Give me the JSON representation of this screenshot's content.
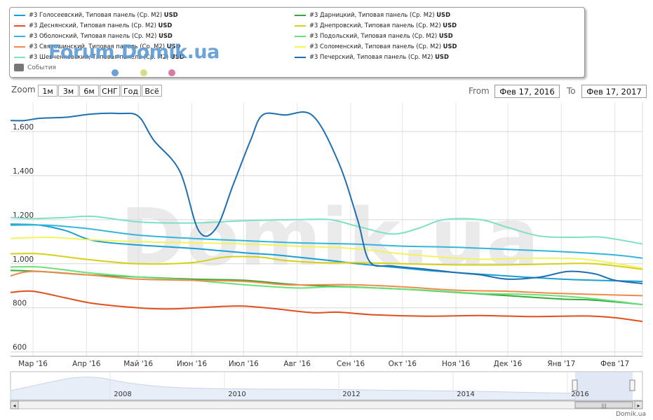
{
  "legend": {
    "events_label": "События",
    "items_left": [
      {
        "name": "#3 Голосеевский, Типовая панель (Ср. М2)",
        "unit": "USD",
        "color": "#1a9ed6"
      },
      {
        "name": "#3 Деснянский, Типовая панель (Ср. М2)",
        "unit": "USD",
        "color": "#e0501e"
      },
      {
        "name": "#3 Оболонский, Типовая панель (Ср. М2)",
        "unit": "USD",
        "color": "#34b6d9"
      },
      {
        "name": "#3 Святошинский, Типовая панель (Ср. М2)",
        "unit": "USD",
        "color": "#f08a4b"
      },
      {
        "name": "#3 Шевченковский, Типовая панель (Ср. М2)",
        "unit": "USD",
        "color": "#7fe0c5"
      }
    ],
    "items_right": [
      {
        "name": "#3 Дарницкий, Типовая панель (Ср. М2)",
        "unit": "USD",
        "color": "#3aa73a"
      },
      {
        "name": "#3 Днепровский, Типовая панель (Ср. М2)",
        "unit": "USD",
        "color": "#d6d116"
      },
      {
        "name": "#3 Подольский, Типовая панель (Ср. М2)",
        "unit": "USD",
        "color": "#69e07a"
      },
      {
        "name": "#3 Соломенский, Типовая панель (Ср. М2)",
        "unit": "USD",
        "color": "#f3f35a"
      },
      {
        "name": "#3 Печерский, Типовая панель (Ср. М2)",
        "unit": "USD",
        "color": "#1f6fb0"
      }
    ],
    "watermark_small": "Forum.Domik.ua",
    "event_dot_colors": [
      "#6aa0d8",
      "#d8dc8a",
      "#d97aa0"
    ]
  },
  "zoom": {
    "label": "Zoom",
    "buttons": [
      "1м",
      "3м",
      "6м",
      "СНГ",
      "Год",
      "Всё"
    ]
  },
  "range": {
    "from_label": "From",
    "from_value": "Фев 17, 2016",
    "to_label": "To",
    "to_value": "Фев 17, 2017"
  },
  "watermark": "Domik.ua",
  "credit": "Domik.ua",
  "navigator": {
    "year_labels": [
      "2008",
      "2010",
      "2012",
      "2014",
      "2016"
    ]
  },
  "chart_data": {
    "type": "line",
    "title": "",
    "xlabel": "",
    "ylabel": "",
    "ylim": [
      580,
      1730
    ],
    "yticks": [
      600,
      800,
      1000,
      1200,
      1400,
      1600
    ],
    "ytick_labels": [
      "600",
      "800",
      "1,000",
      "1,200",
      "1,400",
      "1,600"
    ],
    "xlim": [
      "2016-02-17",
      "2017-02-17"
    ],
    "x_tick_labels": [
      "Мар '16",
      "Апр '16",
      "Май '16",
      "Июн '16",
      "Июл '16",
      "Авг '16",
      "Сен '16",
      "Окт '16",
      "Ноя '16",
      "Дек '16",
      "Янв '17",
      "Фев '17"
    ],
    "x_tick_dates": [
      "2016-03-01",
      "2016-04-01",
      "2016-05-01",
      "2016-06-01",
      "2016-07-01",
      "2016-08-01",
      "2016-09-01",
      "2016-10-01",
      "2016-11-01",
      "2016-12-01",
      "2017-01-01",
      "2017-02-01"
    ],
    "grid": true,
    "series": [
      {
        "name": "#3 Голосеевский, Типовая панель (Ср. М2)",
        "color": "#1a9ed6",
        "points": [
          [
            "2016-02-17",
            1180
          ],
          [
            "2016-03-05",
            1175
          ],
          [
            "2016-03-20",
            1150
          ],
          [
            "2016-04-05",
            1105
          ],
          [
            "2016-05-01",
            1085
          ],
          [
            "2016-06-01",
            1070
          ],
          [
            "2016-07-01",
            1050
          ],
          [
            "2016-07-20",
            1040
          ],
          [
            "2016-08-01",
            1030
          ],
          [
            "2016-08-20",
            1015
          ],
          [
            "2016-09-05",
            1000
          ],
          [
            "2016-09-25",
            985
          ],
          [
            "2016-10-15",
            970
          ],
          [
            "2016-11-01",
            960
          ],
          [
            "2016-11-20",
            950
          ],
          [
            "2016-12-10",
            940
          ],
          [
            "2017-01-01",
            930
          ],
          [
            "2017-01-20",
            925
          ],
          [
            "2017-02-17",
            920
          ]
        ]
      },
      {
        "name": "#3 Дарницкий, Типовая панель (Ср. М2)",
        "color": "#3aa73a",
        "points": [
          [
            "2016-02-17",
            970
          ],
          [
            "2016-03-05",
            965
          ],
          [
            "2016-04-01",
            950
          ],
          [
            "2016-05-01",
            940
          ],
          [
            "2016-06-01",
            930
          ],
          [
            "2016-07-01",
            925
          ],
          [
            "2016-08-01",
            905
          ],
          [
            "2016-09-01",
            895
          ],
          [
            "2016-10-01",
            885
          ],
          [
            "2016-11-01",
            870
          ],
          [
            "2016-12-01",
            855
          ],
          [
            "2017-01-01",
            840
          ],
          [
            "2017-01-20",
            835
          ],
          [
            "2017-02-17",
            815
          ]
        ]
      },
      {
        "name": "#3 Деснянский, Типовая панель (Ср. М2)",
        "color": "#e0501e",
        "points": [
          [
            "2016-02-17",
            870
          ],
          [
            "2016-03-01",
            875
          ],
          [
            "2016-03-20",
            845
          ],
          [
            "2016-04-05",
            820
          ],
          [
            "2016-05-01",
            800
          ],
          [
            "2016-05-20",
            795
          ],
          [
            "2016-06-15",
            805
          ],
          [
            "2016-07-01",
            808
          ],
          [
            "2016-07-20",
            795
          ],
          [
            "2016-08-10",
            778
          ],
          [
            "2016-08-25",
            780
          ],
          [
            "2016-09-15",
            768
          ],
          [
            "2016-10-15",
            762
          ],
          [
            "2016-11-15",
            765
          ],
          [
            "2016-12-15",
            760
          ],
          [
            "2017-01-15",
            763
          ],
          [
            "2017-02-01",
            755
          ],
          [
            "2017-02-17",
            738
          ]
        ]
      },
      {
        "name": "#3 Днепровский, Типовая панель (Ср. М2)",
        "color": "#d6d116",
        "points": [
          [
            "2016-02-17",
            1045
          ],
          [
            "2016-03-05",
            1045
          ],
          [
            "2016-04-01",
            1020
          ],
          [
            "2016-05-01",
            1000
          ],
          [
            "2016-06-01",
            1005
          ],
          [
            "2016-06-20",
            1030
          ],
          [
            "2016-07-10",
            1030
          ],
          [
            "2016-07-25",
            1015
          ],
          [
            "2016-08-15",
            1005
          ],
          [
            "2016-09-05",
            1005
          ],
          [
            "2016-10-01",
            1000
          ],
          [
            "2016-11-01",
            995
          ],
          [
            "2016-12-01",
            995
          ],
          [
            "2017-01-01",
            1000
          ],
          [
            "2017-01-20",
            1000
          ],
          [
            "2017-02-17",
            975
          ]
        ]
      },
      {
        "name": "#3 Оболонский, Типовая панель (Ср. М2)",
        "color": "#34b6d9",
        "points": [
          [
            "2016-02-17",
            1175
          ],
          [
            "2016-03-10",
            1175
          ],
          [
            "2016-04-01",
            1160
          ],
          [
            "2016-05-01",
            1130
          ],
          [
            "2016-06-01",
            1115
          ],
          [
            "2016-07-01",
            1105
          ],
          [
            "2016-08-01",
            1095
          ],
          [
            "2016-09-01",
            1090
          ],
          [
            "2016-10-01",
            1080
          ],
          [
            "2016-11-01",
            1075
          ],
          [
            "2016-12-01",
            1065
          ],
          [
            "2017-01-01",
            1055
          ],
          [
            "2017-02-01",
            1040
          ],
          [
            "2017-02-17",
            1025
          ]
        ]
      },
      {
        "name": "#3 Подольский, Типовая панель (Ср. М2)",
        "color": "#69e07a",
        "points": [
          [
            "2016-02-17",
            985
          ],
          [
            "2016-03-05",
            985
          ],
          [
            "2016-04-01",
            960
          ],
          [
            "2016-05-01",
            940
          ],
          [
            "2016-06-01",
            925
          ],
          [
            "2016-07-01",
            905
          ],
          [
            "2016-08-01",
            890
          ],
          [
            "2016-08-20",
            895
          ],
          [
            "2016-09-15",
            890
          ],
          [
            "2016-10-15",
            880
          ],
          [
            "2016-11-15",
            865
          ],
          [
            "2016-12-15",
            860
          ],
          [
            "2017-01-15",
            845
          ],
          [
            "2017-02-17",
            815
          ]
        ]
      },
      {
        "name": "#3 Святошинский, Типовая панель (Ср. М2)",
        "color": "#f08a4b",
        "points": [
          [
            "2016-02-17",
            945
          ],
          [
            "2016-03-01",
            965
          ],
          [
            "2016-04-01",
            950
          ],
          [
            "2016-05-01",
            930
          ],
          [
            "2016-06-01",
            925
          ],
          [
            "2016-07-01",
            920
          ],
          [
            "2016-07-25",
            905
          ],
          [
            "2016-08-15",
            905
          ],
          [
            "2016-09-01",
            905
          ],
          [
            "2016-10-01",
            895
          ],
          [
            "2016-11-01",
            880
          ],
          [
            "2016-12-01",
            875
          ],
          [
            "2017-01-01",
            865
          ],
          [
            "2017-02-17",
            855
          ]
        ]
      },
      {
        "name": "#3 Соломенский, Типовая панель (Ср. М2)",
        "color": "#f3f35a",
        "points": [
          [
            "2016-02-17",
            1115
          ],
          [
            "2016-03-10",
            1120
          ],
          [
            "2016-04-01",
            1110
          ],
          [
            "2016-05-01",
            1100
          ],
          [
            "2016-06-01",
            1095
          ],
          [
            "2016-07-01",
            1090
          ],
          [
            "2016-08-01",
            1080
          ],
          [
            "2016-09-01",
            1070
          ],
          [
            "2016-09-25",
            1050
          ],
          [
            "2016-10-15",
            1035
          ],
          [
            "2016-11-15",
            1020
          ],
          [
            "2016-12-15",
            1025
          ],
          [
            "2017-01-15",
            1020
          ],
          [
            "2017-02-17",
            980
          ]
        ]
      },
      {
        "name": "#3 Шевченковский, Типовая панель (Ср. М2)",
        "color": "#7fe0c5",
        "points": [
          [
            "2016-02-17",
            1210
          ],
          [
            "2016-03-01",
            1205
          ],
          [
            "2016-03-20",
            1210
          ],
          [
            "2016-04-05",
            1215
          ],
          [
            "2016-05-01",
            1190
          ],
          [
            "2016-06-01",
            1185
          ],
          [
            "2016-07-01",
            1195
          ],
          [
            "2016-08-01",
            1200
          ],
          [
            "2016-08-20",
            1200
          ],
          [
            "2016-09-05",
            1170
          ],
          [
            "2016-09-25",
            1135
          ],
          [
            "2016-10-10",
            1160
          ],
          [
            "2016-10-25",
            1200
          ],
          [
            "2016-11-15",
            1200
          ],
          [
            "2016-12-01",
            1165
          ],
          [
            "2016-12-20",
            1125
          ],
          [
            "2017-01-10",
            1120
          ],
          [
            "2017-01-25",
            1120
          ],
          [
            "2017-02-17",
            1090
          ]
        ]
      },
      {
        "name": "#3 Печерский, Типовая панель (Ср. М2)",
        "color": "#1f6fb0",
        "points": [
          [
            "2016-02-17",
            1650
          ],
          [
            "2016-02-25",
            1650
          ],
          [
            "2016-03-05",
            1660
          ],
          [
            "2016-03-20",
            1665
          ],
          [
            "2016-04-05",
            1680
          ],
          [
            "2016-04-20",
            1682
          ],
          [
            "2016-05-01",
            1670
          ],
          [
            "2016-05-10",
            1560
          ],
          [
            "2016-05-25",
            1420
          ],
          [
            "2016-06-05",
            1150
          ],
          [
            "2016-06-15",
            1160
          ],
          [
            "2016-06-25",
            1360
          ],
          [
            "2016-07-05",
            1560
          ],
          [
            "2016-07-12",
            1675
          ],
          [
            "2016-07-25",
            1675
          ],
          [
            "2016-08-10",
            1672
          ],
          [
            "2016-08-25",
            1460
          ],
          [
            "2016-09-05",
            1200
          ],
          [
            "2016-09-12",
            1010
          ],
          [
            "2016-09-25",
            990
          ],
          [
            "2016-10-15",
            975
          ],
          [
            "2016-11-01",
            960
          ],
          [
            "2016-11-15",
            950
          ],
          [
            "2016-12-01",
            930
          ],
          [
            "2016-12-20",
            940
          ],
          [
            "2017-01-05",
            965
          ],
          [
            "2017-01-20",
            955
          ],
          [
            "2017-02-01",
            925
          ],
          [
            "2017-02-17",
            910
          ]
        ]
      }
    ]
  }
}
